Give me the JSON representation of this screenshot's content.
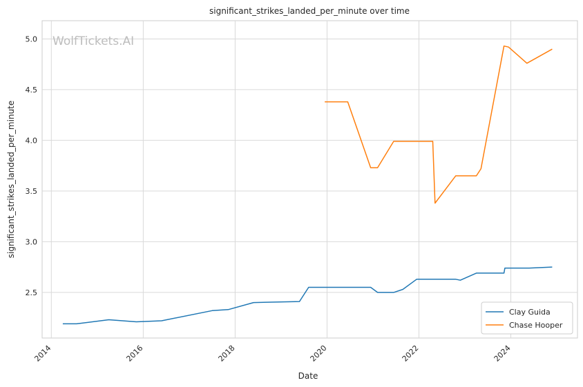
{
  "chart_data": {
    "type": "line",
    "title": "significant_strikes_landed_per_minute over time",
    "xlabel": "Date",
    "ylabel": "significant_strikes_landed_per_minute",
    "watermark": "WolfTickets.AI",
    "xlim": [
      2013.8,
      2025.45
    ],
    "ylim": [
      2.05,
      5.18
    ],
    "xticks": [
      2014,
      2016,
      2018,
      2020,
      2022,
      2024
    ],
    "xtick_labels": [
      "2014",
      "2016",
      "2018",
      "2020",
      "2022",
      "2024"
    ],
    "yticks": [
      2.5,
      3.0,
      3.5,
      4.0,
      4.5,
      5.0
    ],
    "ytick_labels": [
      "2.5",
      "3.0",
      "3.5",
      "4.0",
      "4.5",
      "5.0"
    ],
    "grid": true,
    "legend_position": "bottom-right",
    "series": [
      {
        "name": "Clay Guida",
        "color": "#1f77b4",
        "x": [
          2014.25,
          2014.55,
          2015.25,
          2015.85,
          2016.4,
          2017.5,
          2017.85,
          2018.4,
          2019.4,
          2019.6,
          2020.5,
          2020.95,
          2021.1,
          2021.45,
          2021.65,
          2021.95,
          2022.3,
          2022.8,
          2022.9,
          2023.25,
          2023.85,
          2023.87,
          2024.4,
          2024.9
        ],
        "y": [
          2.19,
          2.19,
          2.23,
          2.21,
          2.22,
          2.32,
          2.33,
          2.4,
          2.41,
          2.55,
          2.55,
          2.55,
          2.5,
          2.5,
          2.53,
          2.63,
          2.63,
          2.63,
          2.62,
          2.69,
          2.69,
          2.74,
          2.74,
          2.75
        ]
      },
      {
        "name": "Chase Hooper",
        "color": "#ff7f0e",
        "x": [
          2019.95,
          2020.45,
          2020.95,
          2021.1,
          2021.45,
          2022.3,
          2022.35,
          2022.8,
          2023.25,
          2023.35,
          2023.85,
          2023.95,
          2024.35,
          2024.9
        ],
        "y": [
          4.38,
          4.38,
          3.73,
          3.73,
          3.99,
          3.99,
          3.38,
          3.65,
          3.65,
          3.72,
          4.93,
          4.92,
          4.76,
          4.9
        ]
      }
    ]
  }
}
